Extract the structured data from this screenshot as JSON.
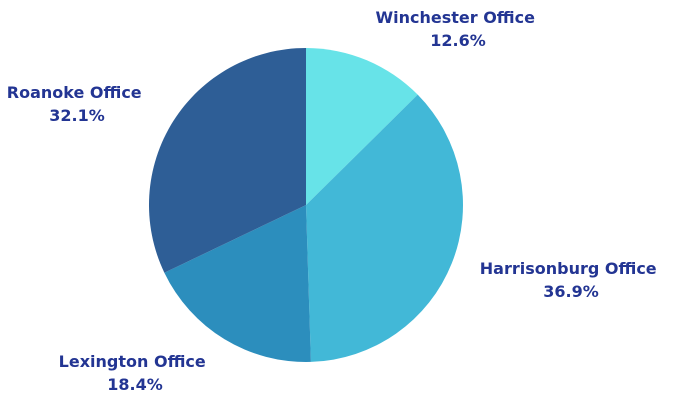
{
  "chart_data": {
    "type": "pie",
    "title": "",
    "start_angle_deg": 0,
    "direction": "clockwise",
    "slices": [
      {
        "label": "Winchester Office",
        "value": 12.6,
        "value_text": "12.6%",
        "color": "#67E3E8"
      },
      {
        "label": "Harrisonburg Office",
        "value": 36.9,
        "value_text": "36.9%",
        "color": "#42B8D7"
      },
      {
        "label": "Lexington Office",
        "value": 18.4,
        "value_text": "18.4%",
        "color": "#2C8EBD"
      },
      {
        "label": "Roanoke Office",
        "value": 32.1,
        "value_text": "32.1%",
        "color": "#2E5E96"
      }
    ],
    "label_color": "#233593",
    "legend": "none"
  }
}
